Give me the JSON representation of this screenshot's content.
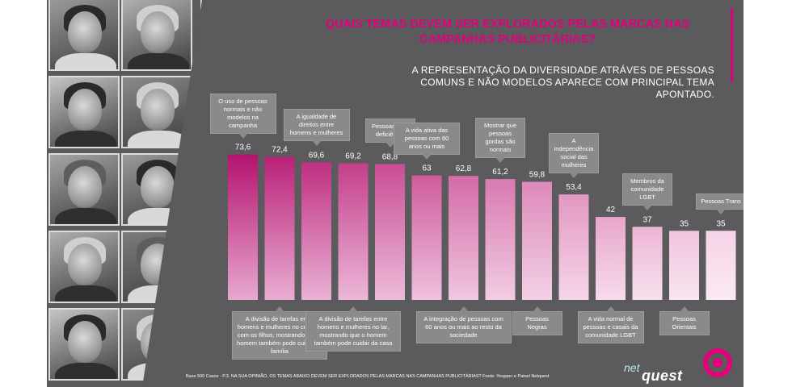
{
  "title": "QUAIS TEMAS DEVEM SER EXPLORADOS PELAS MARCAS NAS CAMPANHAS PUBLICITÁRIAS?",
  "subtitle": "A REPRESENTAÇÃO DA DIVERSIDADE ATRÁVES DE PESSOAS COMUNS E NÃO MODELOS APARECE COM PRINCIPAL TEMA APONTADO.",
  "source": "Base 500 Casos - P.3. NA SUA OPINIÃO, OS TEMAS ABAIXO DEVEM SER EXPLORADOS PELAS MARCAS NAS CAMPANHAS PUBLICITÁRIAS? Fonte: Youpper e Painel Netquest",
  "logo": {
    "net": "net",
    "quest": "quest"
  },
  "colors": {
    "accent": "#e4007c",
    "background": "#5b5b5d",
    "callout": "#8a8a8c",
    "bar_dark": "#b5126f",
    "bar_light": "#f6d3e7"
  },
  "chart_data": {
    "type": "bar",
    "categories": [
      "O uso de pessoas normais e não modelos na campanha",
      "A divisão de tarefas entre homens e mulheres no cuidado com os filhos, mostrando que o homem também pode cuidar da família",
      "A igualdade de direitos entre homens e mulheres",
      "A divisão de tarefas entre homens e mulheres no lar, mostrando que o homem também pode cuidar da casa",
      "Pessoas com deficiência",
      "A vida ativa das pessoas com 60 anos ou mais",
      "A integração de pessoas com 60 anos ou mais ao resto da sociedade",
      "Mostrar que pessoas gordas são normais",
      "Pessoas Negras",
      "A independência social das mulheres",
      "A vida normal de pessoas e casais da comunidade LGBT",
      "Membros da comunidade LGBT",
      "Pessoas Orientais",
      "Pessoas Trans"
    ],
    "values": [
      73.6,
      72.4,
      69.6,
      69.2,
      68.8,
      63,
      62.8,
      61.2,
      59.8,
      53.4,
      42,
      37,
      35,
      35
    ],
    "value_labels": [
      "73,6",
      "72,4",
      "69,6",
      "69,2",
      "68,8",
      "63",
      "62,8",
      "61,2",
      "59,8",
      "53,4",
      "42",
      "37",
      "35",
      "35"
    ],
    "callout_positions": [
      "top",
      "bottom",
      "top",
      "bottom",
      "top",
      "top",
      "bottom",
      "top",
      "bottom",
      "top",
      "bottom",
      "top",
      "bottom",
      "top"
    ],
    "xlabel": "",
    "ylabel": "",
    "grid": false,
    "legend": "none"
  }
}
